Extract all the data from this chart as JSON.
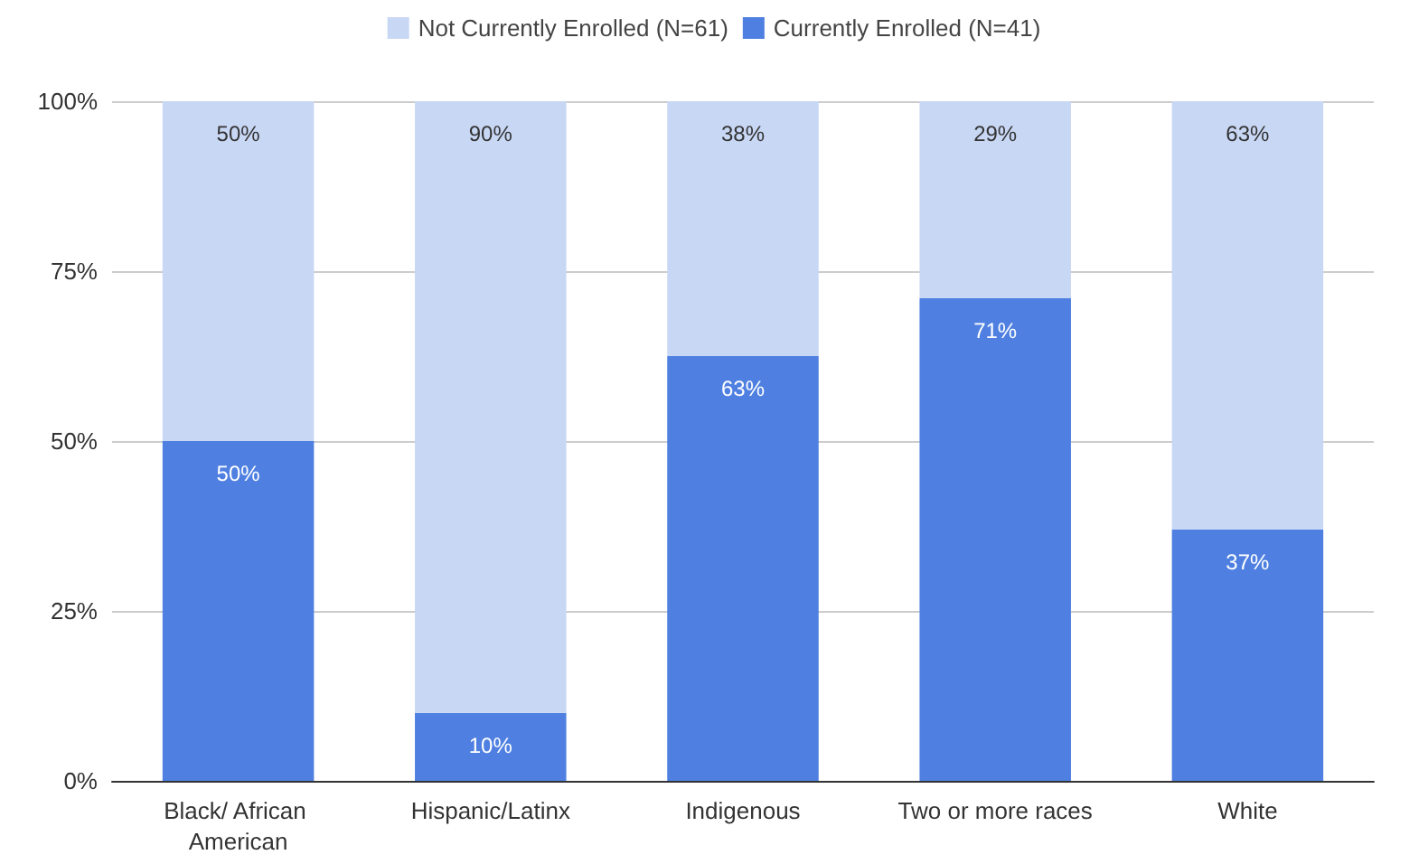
{
  "chart_data": {
    "type": "bar",
    "stacked": true,
    "categories": [
      "Black/ African American",
      "Hispanic/Latinx",
      "Indigenous",
      "Two or more races",
      "White"
    ],
    "series": [
      {
        "name": "Currently Enrolled (N=41)",
        "color": "#4f80e1",
        "values": [
          50,
          10,
          62.5,
          71,
          37
        ],
        "value_labels": [
          "50%",
          "10%",
          "63%",
          "71%",
          "37%"
        ]
      },
      {
        "name": "Not Currently Enrolled (N=61)",
        "color": "#c8d7f4",
        "values": [
          50,
          90,
          37.5,
          29,
          63
        ],
        "value_labels": [
          "50%",
          "90%",
          "38%",
          "29%",
          "63%"
        ]
      }
    ],
    "ylim": [
      0,
      100
    ],
    "yticks": [
      {
        "value": 0,
        "label": "0%"
      },
      {
        "value": 25,
        "label": "25%"
      },
      {
        "value": 50,
        "label": "50%"
      },
      {
        "value": 75,
        "label": "75%"
      },
      {
        "value": 100,
        "label": "100%"
      }
    ],
    "grid": "y",
    "legend": "top"
  }
}
